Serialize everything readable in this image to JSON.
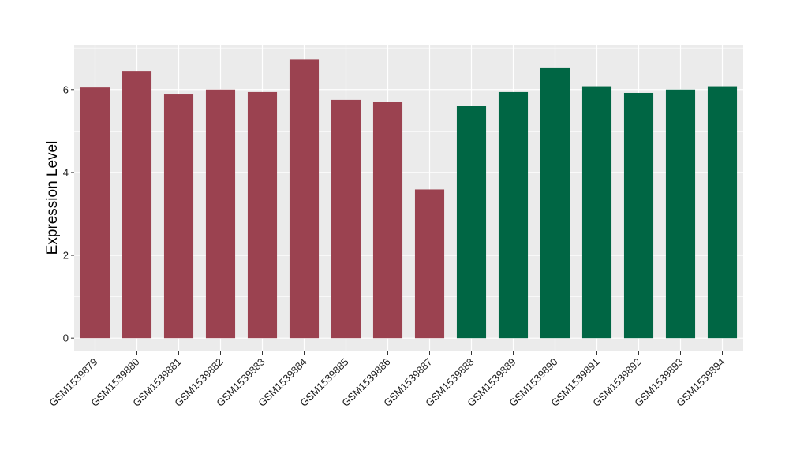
{
  "chart_data": {
    "type": "bar",
    "title": "",
    "xlabel": "",
    "ylabel": "Expression Level",
    "ylim": [
      -0.32,
      7.08
    ],
    "yticks": [
      0,
      2,
      4,
      6
    ],
    "ytick_labels": [
      "0",
      "2",
      "4",
      "6"
    ],
    "grid": true,
    "legend": "none",
    "categories": [
      "GSM1539879",
      "GSM1539880",
      "GSM1539881",
      "GSM1539882",
      "GSM1539883",
      "GSM1539884",
      "GSM1539885",
      "GSM1539886",
      "GSM1539887",
      "GSM1539888",
      "GSM1539889",
      "GSM1539890",
      "GSM1539891",
      "GSM1539892",
      "GSM1539893",
      "GSM1539894"
    ],
    "values": [
      6.05,
      6.45,
      5.9,
      6.0,
      5.94,
      6.73,
      5.75,
      5.71,
      3.59,
      5.6,
      5.94,
      6.53,
      6.08,
      5.92,
      6.0,
      6.08
    ],
    "groups": [
      "group-1",
      "group-1",
      "group-1",
      "group-1",
      "group-1",
      "group-1",
      "group-1",
      "group-1",
      "group-1",
      "group-2",
      "group-2",
      "group-2",
      "group-2",
      "group-2",
      "group-2",
      "group-2"
    ],
    "colors": {
      "group-1": "#9b4250",
      "group-2": "#006644"
    },
    "panel_background": "#ebebeb",
    "grid_color": "#ffffff"
  }
}
